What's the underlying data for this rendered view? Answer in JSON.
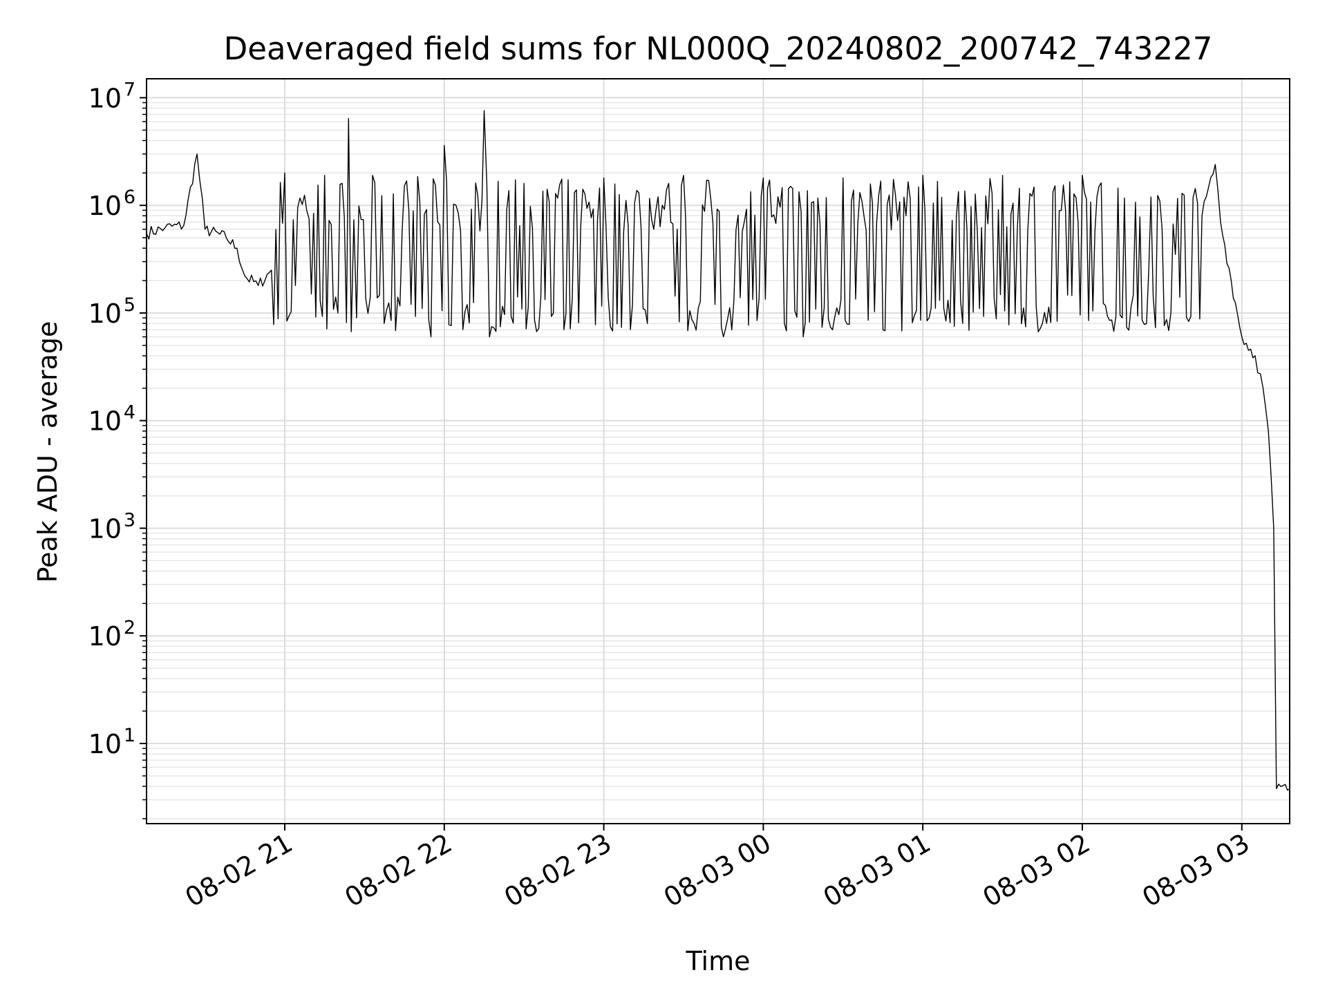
{
  "chart_data": {
    "type": "line",
    "title": "Deaveraged field sums for NL000Q_20240802_200742_743227",
    "xlabel": "Time",
    "ylabel": "Peak ADU - average",
    "yscale": "log",
    "ylim": [
      1.8,
      15000000
    ],
    "xlim": [
      "2024-08-02 20:08",
      "2024-08-03 03:18"
    ],
    "grid": "both major and minor, light gray",
    "line_color": "#000000",
    "x_ticks": [
      {
        "value": "2024-08-02 21:00",
        "label": "08-02 21"
      },
      {
        "value": "2024-08-02 22:00",
        "label": "08-02 22"
      },
      {
        "value": "2024-08-02 23:00",
        "label": "08-02 23"
      },
      {
        "value": "2024-08-03 00:00",
        "label": "08-03 00"
      },
      {
        "value": "2024-08-03 01:00",
        "label": "08-03 01"
      },
      {
        "value": "2024-08-03 02:00",
        "label": "08-03 02"
      },
      {
        "value": "2024-08-03 03:00",
        "label": "08-03 03"
      }
    ],
    "y_ticks": [
      {
        "value": 10,
        "base": "10",
        "exp": "1"
      },
      {
        "value": 100,
        "base": "10",
        "exp": "2"
      },
      {
        "value": 1000,
        "base": "10",
        "exp": "3"
      },
      {
        "value": 10000,
        "base": "10",
        "exp": "4"
      },
      {
        "value": 100000,
        "base": "10",
        "exp": "5"
      },
      {
        "value": 1000000,
        "base": "10",
        "exp": "6"
      },
      {
        "value": 10000000,
        "base": "10",
        "exp": "7"
      }
    ],
    "series": [
      {
        "points": [
          [
            "2024-08-02 20:08",
            550000
          ],
          [
            "2024-08-02 20:15",
            620000
          ],
          [
            "2024-08-02 20:22",
            650000
          ],
          [
            "2024-08-02 20:27",
            3000000
          ],
          [
            "2024-08-02 20:30",
            600000
          ],
          [
            "2024-08-02 20:38",
            500000
          ],
          [
            "2024-08-02 20:42",
            400000
          ],
          [
            "2024-08-02 20:45",
            220000
          ],
          [
            "2024-08-02 20:50",
            180000
          ],
          [
            "2024-08-02 20:55",
            250000
          ],
          [
            "2024-08-02 21:00",
            2000000
          ],
          [
            "2024-08-02 21:04",
            180000
          ],
          [
            "2024-08-02 21:10",
            150000
          ],
          [
            "2024-08-02 21:15",
            1900000
          ],
          [
            "2024-08-02 21:20",
            100000
          ],
          [
            "2024-08-02 21:24",
            6400000
          ],
          [
            "2024-08-02 21:27",
            90000
          ],
          [
            "2024-08-02 21:33",
            1900000
          ],
          [
            "2024-08-02 21:40",
            85000
          ],
          [
            "2024-08-02 21:50",
            1850000
          ],
          [
            "2024-08-02 21:55",
            60000
          ],
          [
            "2024-08-02 22:00",
            3600000
          ],
          [
            "2024-08-02 22:07",
            70000
          ],
          [
            "2024-08-02 22:15",
            7600000
          ],
          [
            "2024-08-02 22:17",
            60000
          ],
          [
            "2024-08-02 22:30",
            1600000
          ],
          [
            "2024-08-02 22:45",
            70000
          ],
          [
            "2024-08-02 23:00",
            1800000
          ],
          [
            "2024-08-02 23:10",
            70000
          ],
          [
            "2024-08-02 23:30",
            1900000
          ],
          [
            "2024-08-02 23:45",
            60000
          ],
          [
            "2024-08-03 00:00",
            1800000
          ],
          [
            "2024-08-03 00:15",
            60000
          ],
          [
            "2024-08-03 00:30",
            1800000
          ],
          [
            "2024-08-03 00:45",
            70000
          ],
          [
            "2024-08-03 01:00",
            1900000
          ],
          [
            "2024-08-03 01:15",
            80000
          ],
          [
            "2024-08-03 01:30",
            1900000
          ],
          [
            "2024-08-03 01:45",
            80000
          ],
          [
            "2024-08-03 02:00",
            1900000
          ],
          [
            "2024-08-03 02:15",
            90000
          ],
          [
            "2024-08-03 02:25",
            250000
          ],
          [
            "2024-08-03 02:35",
            350000
          ],
          [
            "2024-08-03 02:45",
            800000
          ],
          [
            "2024-08-03 02:50",
            2400000
          ],
          [
            "2024-08-03 02:52",
            700000
          ],
          [
            "2024-08-03 02:56",
            200000
          ],
          [
            "2024-08-03 03:00",
            60000
          ],
          [
            "2024-08-03 03:05",
            40000
          ],
          [
            "2024-08-03 03:08",
            20000
          ],
          [
            "2024-08-03 03:10",
            8000
          ],
          [
            "2024-08-03 03:12",
            1000
          ],
          [
            "2024-08-03 03:13",
            3.8
          ],
          [
            "2024-08-03 03:18",
            3.8
          ]
        ]
      }
    ]
  }
}
